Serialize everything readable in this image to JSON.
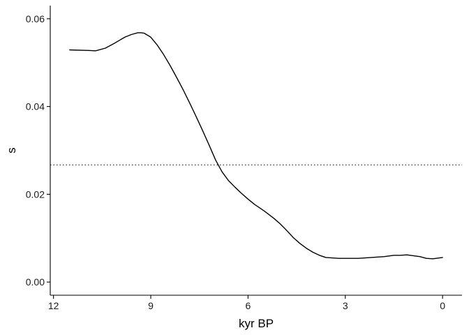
{
  "chart_data": {
    "type": "line",
    "title": "",
    "xlabel": "kyr BP",
    "ylabel": "s",
    "xlim": [
      12.1,
      -0.6
    ],
    "ylim": [
      -0.003,
      0.063
    ],
    "x_reversed": true,
    "grid": false,
    "xticks": [
      12,
      9,
      6,
      3,
      0
    ],
    "xtick_labels": [
      "12",
      "9",
      "6",
      "3",
      "0"
    ],
    "yticks": [
      0.0,
      0.02,
      0.04,
      0.06
    ],
    "ytick_labels": [
      "0.00",
      "0.02",
      "0.04",
      "0.06"
    ],
    "series": [
      {
        "line_style": "solid",
        "color": "#000000",
        "x": [
          11.5,
          11.0,
          10.7,
          10.4,
          10.1,
          9.8,
          9.6,
          9.4,
          9.3,
          9.2,
          9.0,
          8.8,
          8.6,
          8.4,
          8.2,
          8.0,
          7.8,
          7.6,
          7.4,
          7.2,
          7.0,
          6.8,
          6.6,
          6.4,
          6.2,
          6.0,
          5.8,
          5.5,
          5.2,
          5.0,
          4.8,
          4.6,
          4.4,
          4.2,
          4.0,
          3.8,
          3.6,
          3.4,
          3.2,
          3.0,
          2.6,
          2.2,
          1.8,
          1.5,
          1.3,
          1.1,
          0.9,
          0.7,
          0.5,
          0.3,
          0.0
        ],
        "y": [
          0.0529,
          0.0528,
          0.0527,
          0.0533,
          0.0545,
          0.0558,
          0.0564,
          0.0568,
          0.0568,
          0.0567,
          0.0558,
          0.054,
          0.0518,
          0.0493,
          0.0466,
          0.0438,
          0.0408,
          0.0377,
          0.0345,
          0.0312,
          0.0278,
          0.0251,
          0.0231,
          0.0216,
          0.0202,
          0.0189,
          0.0177,
          0.0162,
          0.0145,
          0.0132,
          0.0117,
          0.0101,
          0.0088,
          0.0077,
          0.0068,
          0.0061,
          0.0056,
          0.0055,
          0.0054,
          0.0054,
          0.0054,
          0.0056,
          0.0058,
          0.0061,
          0.0061,
          0.0062,
          0.006,
          0.0058,
          0.0054,
          0.0053,
          0.0056
        ]
      }
    ],
    "reference_lines": [
      {
        "orientation": "horizontal",
        "y": 0.0267,
        "style": "dotted",
        "color": "#000000"
      }
    ]
  }
}
